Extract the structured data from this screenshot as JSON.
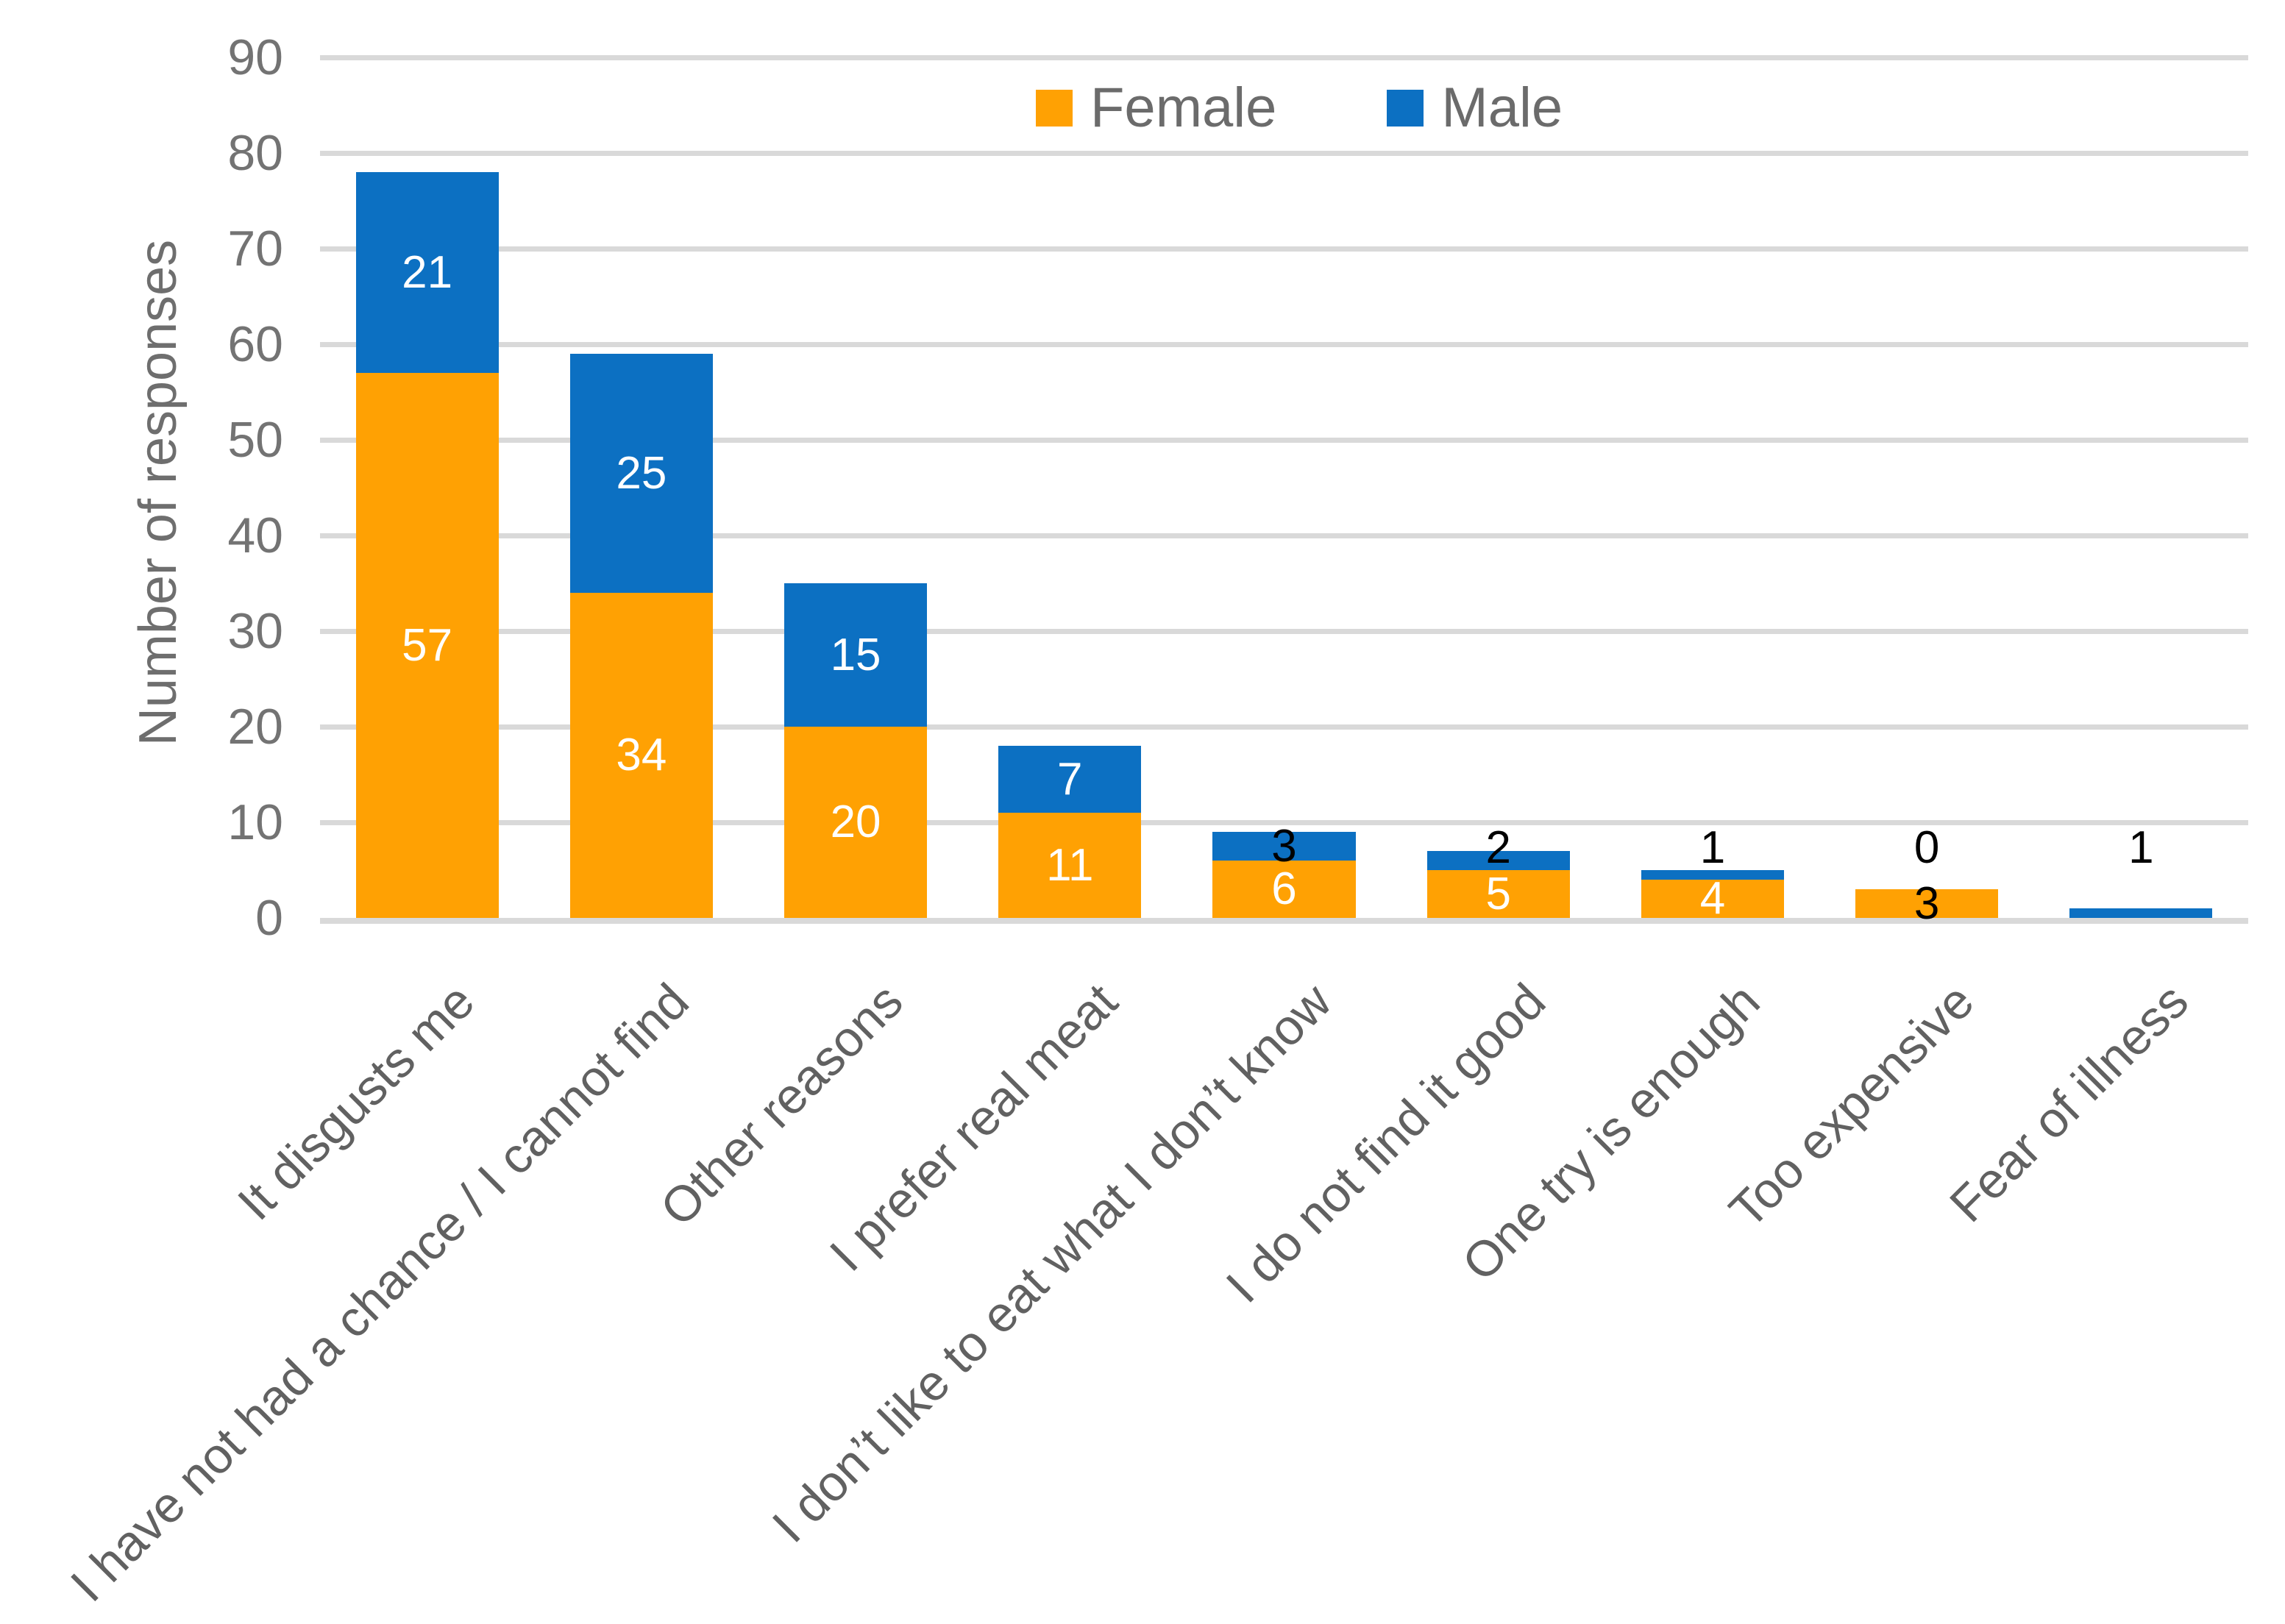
{
  "chart_data": {
    "type": "bar",
    "stacked": true,
    "title": "",
    "xlabel": "",
    "ylabel": "Number of responses",
    "ylim": [
      0,
      90
    ],
    "ytick_step": 10,
    "grid": true,
    "gridline_color": "#D9D9D9",
    "legend_position": "top-center",
    "categories": [
      "It disgusts me",
      "I have not had a chance / I cannot find",
      "Other reasons",
      "I prefer real meat",
      "I don’t like to eat what I don’t know",
      "I do not find it good",
      "One try is enough",
      "Too expensive",
      "Fear of illness"
    ],
    "series": [
      {
        "name": "Female",
        "color": "#FFA103",
        "values": [
          57,
          34,
          20,
          11,
          6,
          5,
          4,
          3,
          0
        ]
      },
      {
        "name": "Male",
        "color": "#0C70C2",
        "values": [
          21,
          25,
          15,
          7,
          3,
          2,
          1,
          0,
          1
        ]
      }
    ],
    "data_label_colors": {
      "inside": "#FFFFFF",
      "small_value": "#000000"
    }
  }
}
